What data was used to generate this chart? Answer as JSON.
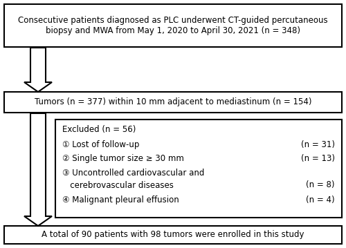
{
  "bg_color": "#ffffff",
  "box_edge_color": "#000000",
  "box_face_color": "#ffffff",
  "box1_text": "Consecutive patients diagnosed as PLC underwent CT-guided percutaneous\nbiopsy and MWA from May 1, 2020 to April 30, 2021 (n = 348)",
  "box2_text": "Tumors (n = 377) within 10 mm adjacent to mediastinum (n = 154)",
  "box3_title": "Excluded (n = 56)",
  "box3_item1_left": "① Lost of follow-up",
  "box3_item1_right": "(n = 31)",
  "box3_item2_left": "② Single tumor size ≥ 30 mm",
  "box3_item2_right": "(n = 13)",
  "box3_item3_left1": "③ Uncontrolled cardiovascular and",
  "box3_item3_left2": "   cerebrovascular diseases",
  "box3_item3_right": "(n = 8)",
  "box3_item4_left": "④ Malignant pleural effusion",
  "box3_item4_right": "(n = 4)",
  "box4_text": "A total of 90 patients with 98 tumors were enrolled in this study",
  "fontsize": 8.5
}
